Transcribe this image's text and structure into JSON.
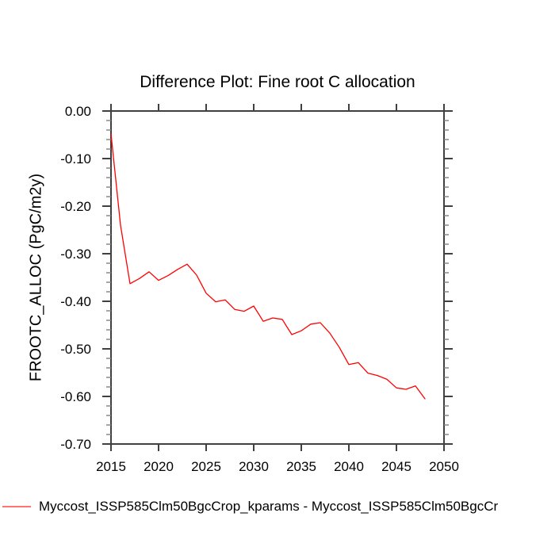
{
  "chart_data": {
    "type": "line",
    "title": "Difference Plot: Fine root C allocation",
    "xlabel": "",
    "ylabel": "FROOTC_ALLOC (PgC/m2y)",
    "xlim": [
      2015,
      2050
    ],
    "ylim": [
      -0.7,
      0.0
    ],
    "x_ticks": [
      2015,
      2020,
      2025,
      2030,
      2035,
      2040,
      2045,
      2050
    ],
    "y_tick_labels": [
      "0.00",
      "-0.10",
      "-0.20",
      "-0.30",
      "-0.40",
      "-0.50",
      "-0.60",
      "-0.70"
    ],
    "y_minor_step": 0.02,
    "grid": false,
    "legend_position": "bottom-left",
    "series": [
      {
        "name": "Myccost_ISSP585Clm50BgcCrop_kparams - Myccost_ISSP585Clm50BgcCr",
        "color": "#ff0000",
        "x": [
          2015,
          2016,
          2017,
          2018,
          2019,
          2020,
          2021,
          2022,
          2023,
          2024,
          2025,
          2026,
          2027,
          2028,
          2029,
          2030,
          2031,
          2032,
          2033,
          2034,
          2035,
          2036,
          2037,
          2038,
          2039,
          2040,
          2041,
          2042,
          2043,
          2044,
          2045,
          2046,
          2047,
          2048
        ],
        "y": [
          -0.048,
          -0.24,
          -0.363,
          -0.352,
          -0.338,
          -0.356,
          -0.346,
          -0.333,
          -0.322,
          -0.345,
          -0.383,
          -0.401,
          -0.397,
          -0.417,
          -0.421,
          -0.41,
          -0.442,
          -0.435,
          -0.438,
          -0.47,
          -0.462,
          -0.448,
          -0.445,
          -0.467,
          -0.497,
          -0.533,
          -0.529,
          -0.551,
          -0.556,
          -0.564,
          -0.582,
          -0.585,
          -0.578,
          -0.605
        ]
      }
    ]
  },
  "colors": {
    "axis": "#404040",
    "minor_tick": "#808080",
    "line": "#ff0000",
    "background": "#ffffff",
    "text": "#000000"
  }
}
